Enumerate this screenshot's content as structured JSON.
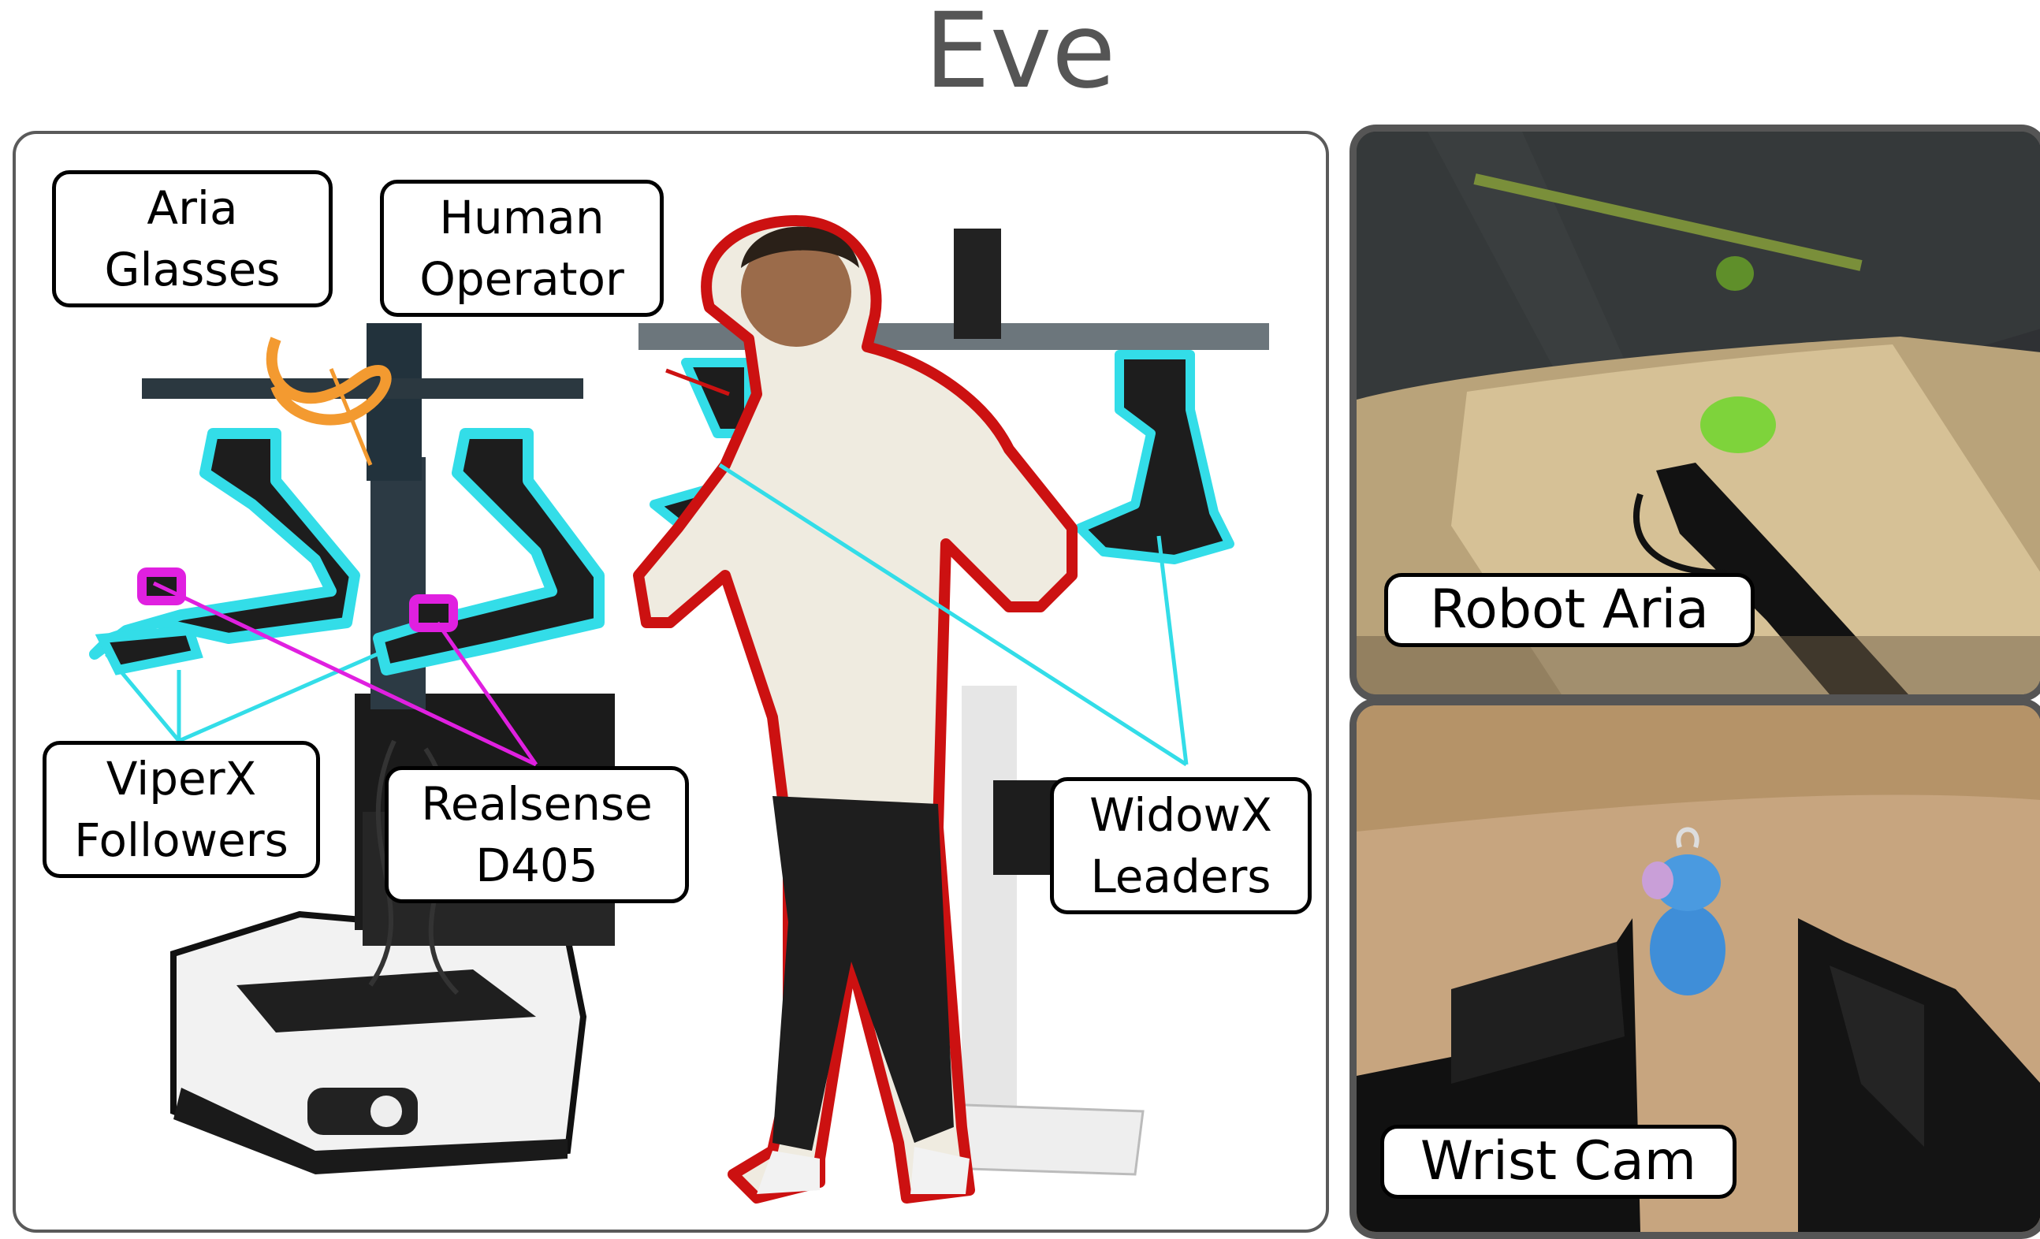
{
  "title": "Eve",
  "labels": {
    "aria_glasses": "Aria\nGlasses",
    "human_operator": "Human\nOperator",
    "viperx_followers": "ViperX\nFollowers",
    "realsense": "Realsense\nD405",
    "widowx_leaders": "WidowX\nLeaders",
    "robot_aria": "Robot Aria",
    "wrist_cam": "Wrist Cam"
  },
  "colors": {
    "follower_outline": "#33dde8",
    "camera_outline": "#e020e0",
    "glasses_outline": "#f39a30",
    "operator_outline": "#cc1111",
    "frame": "#555555"
  }
}
